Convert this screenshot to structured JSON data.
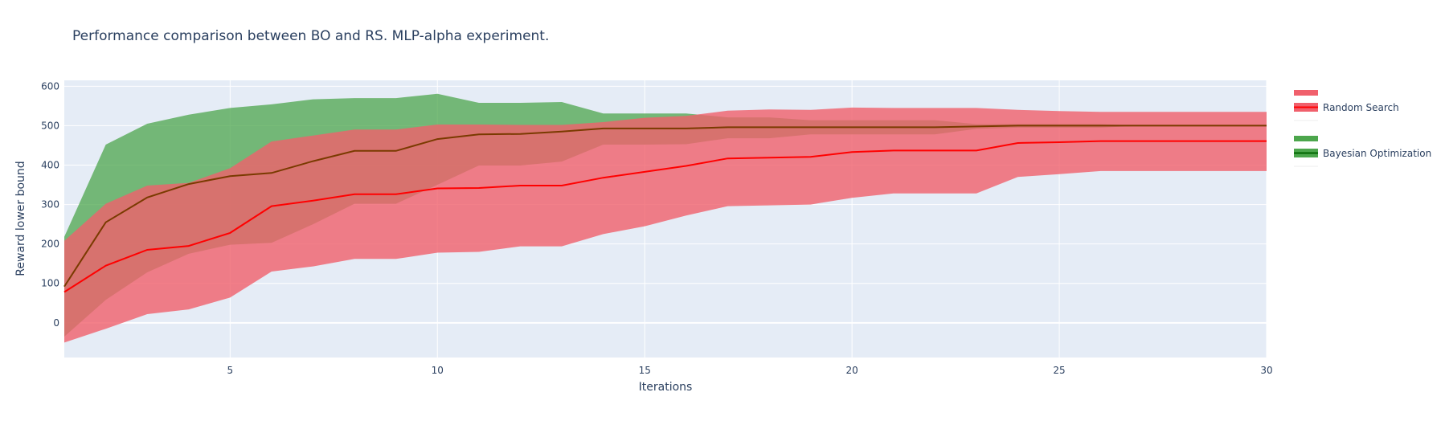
{
  "chart_data": {
    "type": "line",
    "title": "Performance comparison between BO and RS. MLP-alpha experiment.",
    "xlabel": "Iterations",
    "ylabel": "Reward lower bound",
    "xlim": [
      1,
      30
    ],
    "ylim": [
      -88,
      615
    ],
    "xticks": [
      5,
      10,
      15,
      20,
      25,
      30
    ],
    "yticks": [
      0,
      100,
      200,
      300,
      400,
      500,
      600
    ],
    "grid": true,
    "legend_position": "right",
    "x": [
      1,
      2,
      3,
      4,
      5,
      6,
      7,
      8,
      9,
      10,
      11,
      12,
      13,
      14,
      15,
      16,
      17,
      18,
      19,
      20,
      21,
      22,
      23,
      24,
      25,
      26,
      27,
      28,
      29,
      30
    ],
    "series": [
      {
        "name": "Random Search",
        "color": "#ff0000",
        "band_color": "#f0606c",
        "mean": [
          78,
          145,
          185,
          195,
          228,
          296,
          310,
          326,
          326,
          341,
          342,
          348,
          348,
          368,
          383,
          398,
          417,
          419,
          421,
          433,
          437,
          437,
          437,
          456,
          458,
          461,
          461,
          461,
          461,
          461
        ],
        "upper": [
          208,
          302,
          348,
          355,
          392,
          460,
          475,
          490,
          490,
          503,
          503,
          502,
          502,
          509,
          520,
          525,
          538,
          541,
          540,
          546,
          545,
          545,
          545,
          540,
          537,
          535,
          535,
          535,
          535,
          535
        ],
        "lower": [
          -50,
          -15,
          22,
          34,
          64,
          130,
          143,
          162,
          162,
          178,
          180,
          194,
          194,
          225,
          245,
          272,
          296,
          298,
          300,
          317,
          328,
          328,
          328,
          370,
          377,
          385,
          385,
          385,
          385,
          385
        ]
      },
      {
        "name": "Bayesian Optimization",
        "color": "#006400",
        "band_color": "#4ca64c",
        "mean": [
          92,
          255,
          318,
          352,
          372,
          380,
          410,
          436,
          436,
          466,
          478,
          479,
          485,
          493,
          493,
          493,
          496,
          496,
          496,
          496,
          496,
          496,
          498,
          500,
          500,
          500,
          500,
          500,
          500,
          500
        ],
        "upper": [
          218,
          452,
          505,
          528,
          545,
          554,
          567,
          570,
          570,
          581,
          558,
          558,
          560,
          531,
          531,
          531,
          521,
          521,
          514,
          514,
          514,
          514,
          504,
          504,
          504,
          504,
          500,
          500,
          500,
          500
        ],
        "lower": [
          -35,
          58,
          128,
          175,
          198,
          203,
          250,
          302,
          302,
          350,
          399,
          399,
          409,
          452,
          452,
          453,
          468,
          468,
          478,
          478,
          478,
          478,
          492,
          495,
          495,
          495,
          500,
          500,
          500,
          500
        ]
      }
    ]
  }
}
